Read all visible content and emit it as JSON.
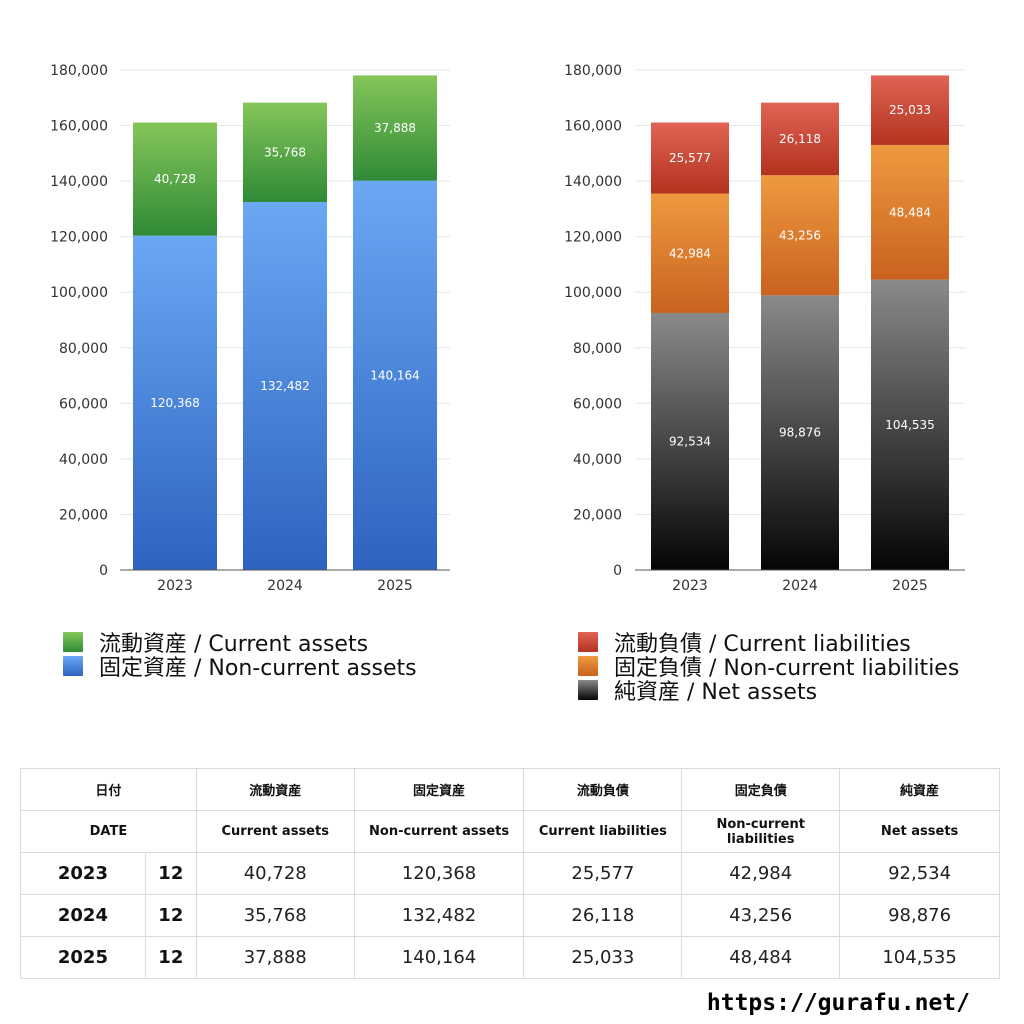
{
  "chart_data": [
    {
      "type": "bar",
      "stacked": true,
      "categories": [
        "2023",
        "2024",
        "2025"
      ],
      "ylim": [
        0,
        180000
      ],
      "yticks": [
        "0",
        "20,000",
        "40,000",
        "60,000",
        "80,000",
        "100,000",
        "120,000",
        "140,000",
        "160,000",
        "180,000"
      ],
      "grid": true,
      "legend_position": "bottom-left",
      "series": [
        {
          "name": "固定資産 / Non-current assets",
          "values": [
            120368,
            132482,
            140164
          ],
          "labels": [
            "120,368",
            "132,482",
            "140,164"
          ],
          "color_top": "#6aa8f4",
          "color_bottom": "#2d63c0"
        },
        {
          "name": "流動資産 / Current assets",
          "values": [
            40728,
            35768,
            37888
          ],
          "labels": [
            "40,728",
            "35,768",
            "37,888"
          ],
          "color_top": "#85c65a",
          "color_bottom": "#2f8a36"
        }
      ]
    },
    {
      "type": "bar",
      "stacked": true,
      "categories": [
        "2023",
        "2024",
        "2025"
      ],
      "ylim": [
        0,
        180000
      ],
      "yticks": [
        "0",
        "20,000",
        "40,000",
        "60,000",
        "80,000",
        "100,000",
        "120,000",
        "140,000",
        "160,000",
        "180,000"
      ],
      "grid": true,
      "legend_position": "bottom-right",
      "series": [
        {
          "name": "純資産 / Net assets",
          "values": [
            92534,
            98876,
            104535
          ],
          "labels": [
            "92,534",
            "98,876",
            "104,535"
          ],
          "color_top": "#8a8a8a",
          "color_bottom": "#050505"
        },
        {
          "name": "固定負債 / Non-current liabilities",
          "values": [
            42984,
            43256,
            48484
          ],
          "labels": [
            "42,984",
            "43,256",
            "48,484"
          ],
          "color_top": "#ee9a3f",
          "color_bottom": "#c9621f"
        },
        {
          "name": "流動負債 / Current liabilities",
          "values": [
            25577,
            26118,
            25033
          ],
          "labels": [
            "25,577",
            "26,118",
            "25,033"
          ],
          "color_top": "#e16355",
          "color_bottom": "#b2331f"
        }
      ]
    }
  ],
  "legend_left": [
    {
      "label": "流動資産 / Current assets",
      "color": "#5fae45"
    },
    {
      "label": "固定資産 / Non-current assets",
      "color": "#4a86dc"
    }
  ],
  "legend_right": [
    {
      "label": "流動負債 / Current liabilities",
      "color": "#d04a3a"
    },
    {
      "label": "固定負債 / Non-current liabilities",
      "color": "#e58a35"
    },
    {
      "label": "純資産 / Net assets",
      "color": "#2a2a2a"
    }
  ],
  "table": {
    "header_jp": [
      "日付",
      "流動資産",
      "固定資産",
      "流動負債",
      "固定負債",
      "純資産"
    ],
    "header_en": [
      "DATE",
      "Current assets",
      "Non-current assets",
      "Current liabilities",
      "Non-current liabilities",
      "Net assets"
    ],
    "rows": [
      {
        "year": "2023",
        "month": "12",
        "values": [
          "40,728",
          "120,368",
          "25,577",
          "42,984",
          "92,534"
        ]
      },
      {
        "year": "2024",
        "month": "12",
        "values": [
          "35,768",
          "132,482",
          "26,118",
          "43,256",
          "98,876"
        ]
      },
      {
        "year": "2025",
        "month": "12",
        "values": [
          "37,888",
          "140,164",
          "25,033",
          "48,484",
          "104,535"
        ]
      }
    ]
  },
  "footer": {
    "url": "https://gurafu.net/"
  }
}
